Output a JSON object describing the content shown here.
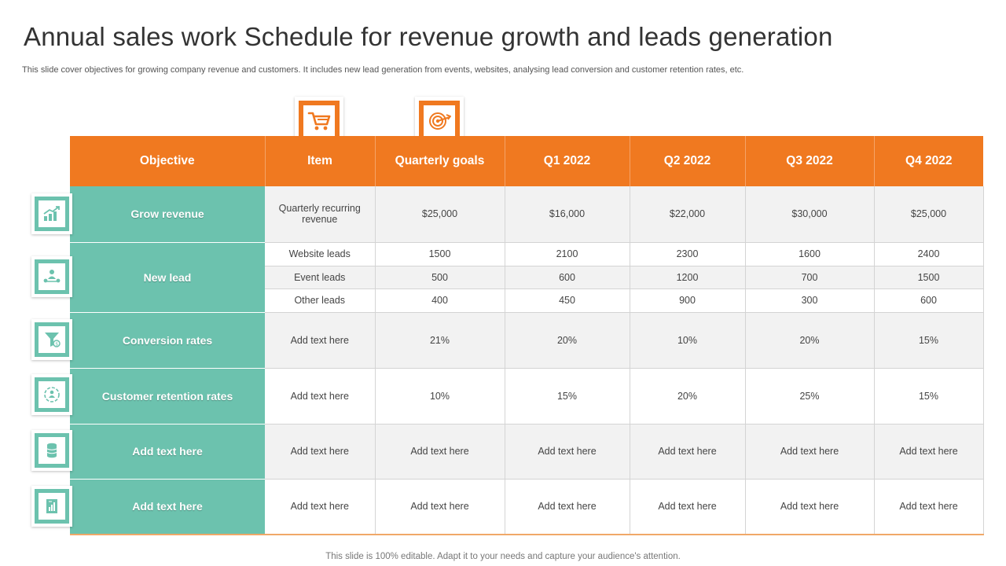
{
  "title": "Annual sales work Schedule for revenue growth and leads generation",
  "subtitle": "This slide cover objectives for growing company revenue and customers. It includes new lead generation from events, websites, analysing lead conversion and customer retention rates, etc.",
  "footer": "This slide is 100% editable. Adapt it to your needs and capture your audience's attention.",
  "colors": {
    "accent": "#f07920",
    "teal": "#6cc2ae"
  },
  "icons": {
    "header": [
      "shopping-cart-icon",
      "target-icon"
    ],
    "side": [
      "growth-chart-icon",
      "network-people-icon",
      "funnel-dollar-icon",
      "customer-cycle-icon",
      "database-icon",
      "document-chart-icon"
    ]
  },
  "table": {
    "headers": [
      "Objective",
      "Item",
      "Quarterly goals",
      "Q1 2022",
      "Q2 2022",
      "Q3 2022",
      "Q4 2022"
    ],
    "grow_revenue": {
      "objective": "Grow revenue",
      "item": "Quarterly recurring revenue",
      "values": [
        "$25,000",
        "$16,000",
        "$22,000",
        "$30,000",
        "$25,000"
      ]
    },
    "new_lead": {
      "objective": "New lead",
      "rows": [
        {
          "item": "Website leads",
          "values": [
            "1500",
            "2100",
            "2300",
            "1600",
            "2400"
          ]
        },
        {
          "item": "Event leads",
          "values": [
            "500",
            "600",
            "1200",
            "700",
            "1500"
          ]
        },
        {
          "item": "Other leads",
          "values": [
            "400",
            "450",
            "900",
            "300",
            "600"
          ]
        }
      ]
    },
    "conversion": {
      "objective": "Conversion rates",
      "item": "Add text here",
      "values": [
        "21%",
        "20%",
        "10%",
        "20%",
        "15%"
      ]
    },
    "retention": {
      "objective": "Customer retention rates",
      "item": "Add text here",
      "values": [
        "10%",
        "15%",
        "20%",
        "25%",
        "15%"
      ]
    },
    "extra1": {
      "objective": "Add  text here",
      "item": "Add text here",
      "values": [
        "Add text here",
        "Add text here",
        "Add text here",
        "Add text here",
        "Add text here"
      ]
    },
    "extra2": {
      "objective": "Add  text here",
      "item": "Add text here",
      "values": [
        "Add text here",
        "Add text here",
        "Add text here",
        "Add text here",
        "Add text here"
      ]
    }
  }
}
